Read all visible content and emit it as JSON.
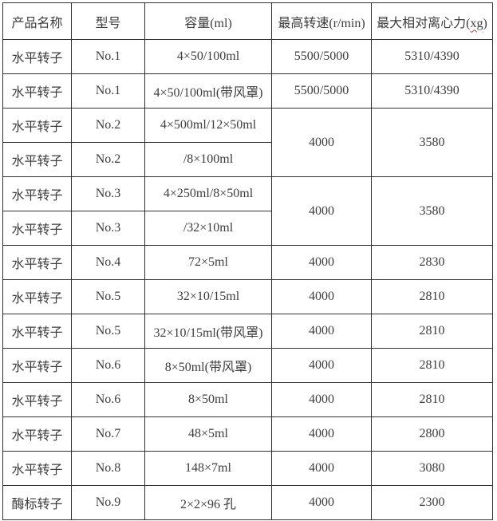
{
  "page": {
    "background_color": "#ffffff",
    "text_color": "#3d3d3d",
    "border_color": "#333333",
    "spellcheck_underline_color": "#cc3333"
  },
  "table": {
    "columns": [
      {
        "label": "产品名称"
      },
      {
        "label": "型号"
      },
      {
        "label": "容量(ml)"
      },
      {
        "label": "最高转速(r/min)"
      },
      {
        "label_prefix": "最大相对离心力(",
        "label_term": "xg",
        "label_suffix": ")",
        "term_decoration": "red-wavy-spellcheck-underline"
      }
    ],
    "rows": [
      {
        "cells": [
          {
            "text": "水平转子"
          },
          {
            "text": "No.1"
          },
          {
            "text": "4×50/100ml"
          },
          {
            "text": "5500/5000"
          },
          {
            "text": "5310/4390"
          }
        ]
      },
      {
        "cells": [
          {
            "text": "水平转子"
          },
          {
            "text": "No.1"
          },
          {
            "text": "4×50/100ml(带风罩)"
          },
          {
            "text": "5500/5000"
          },
          {
            "text": "5310/4390"
          }
        ]
      },
      {
        "cells": [
          {
            "text": "水平转子"
          },
          {
            "text": "No.2"
          },
          {
            "text": "4×500ml/12×50ml"
          },
          {
            "text": "4000",
            "rowspan": 2
          },
          {
            "text": "3580",
            "rowspan": 2
          }
        ]
      },
      {
        "cells": [
          {
            "text": "水平转子"
          },
          {
            "text": "No.2"
          },
          {
            "text": "/8×100ml"
          }
        ]
      },
      {
        "cells": [
          {
            "text": "水平转子"
          },
          {
            "text": "No.3"
          },
          {
            "text": "4×250ml/8×50ml"
          },
          {
            "text": "4000",
            "rowspan": 2
          },
          {
            "text": "3580",
            "rowspan": 2
          }
        ]
      },
      {
        "cells": [
          {
            "text": "水平转子"
          },
          {
            "text": "No.3"
          },
          {
            "text": "/32×10ml"
          }
        ]
      },
      {
        "cells": [
          {
            "text": "水平转子"
          },
          {
            "text": "No.4"
          },
          {
            "text": "72×5ml"
          },
          {
            "text": "4000"
          },
          {
            "text": "2830"
          }
        ]
      },
      {
        "cells": [
          {
            "text": "水平转子"
          },
          {
            "text": "No.5"
          },
          {
            "text": "32×10/15ml"
          },
          {
            "text": "4000"
          },
          {
            "text": "2810"
          }
        ]
      },
      {
        "cells": [
          {
            "text": "水平转子"
          },
          {
            "text": "No.5"
          },
          {
            "text": "32×10/15ml(带风罩)"
          },
          {
            "text": "4000"
          },
          {
            "text": "2810"
          }
        ]
      },
      {
        "cells": [
          {
            "text": "水平转子"
          },
          {
            "text": "No.6"
          },
          {
            "text": "8×50ml(带风罩)"
          },
          {
            "text": "4000"
          },
          {
            "text": "2810"
          }
        ]
      },
      {
        "cells": [
          {
            "text": "水平转子"
          },
          {
            "text": "No.6"
          },
          {
            "text": "8×50ml"
          },
          {
            "text": "4000"
          },
          {
            "text": "2810"
          }
        ]
      },
      {
        "cells": [
          {
            "text": "水平转子"
          },
          {
            "text": "No.7"
          },
          {
            "text": "48×5ml"
          },
          {
            "text": "4000"
          },
          {
            "text": "2800"
          }
        ]
      },
      {
        "cells": [
          {
            "text": "水平转子"
          },
          {
            "text": "No.8"
          },
          {
            "text": "148×7ml"
          },
          {
            "text": "4000"
          },
          {
            "text": "3080"
          }
        ]
      },
      {
        "cells": [
          {
            "text": "酶标转子"
          },
          {
            "text": "No.9"
          },
          {
            "text": "2×2×96 孔"
          },
          {
            "text": "4000"
          },
          {
            "text": "2300"
          }
        ]
      }
    ]
  }
}
